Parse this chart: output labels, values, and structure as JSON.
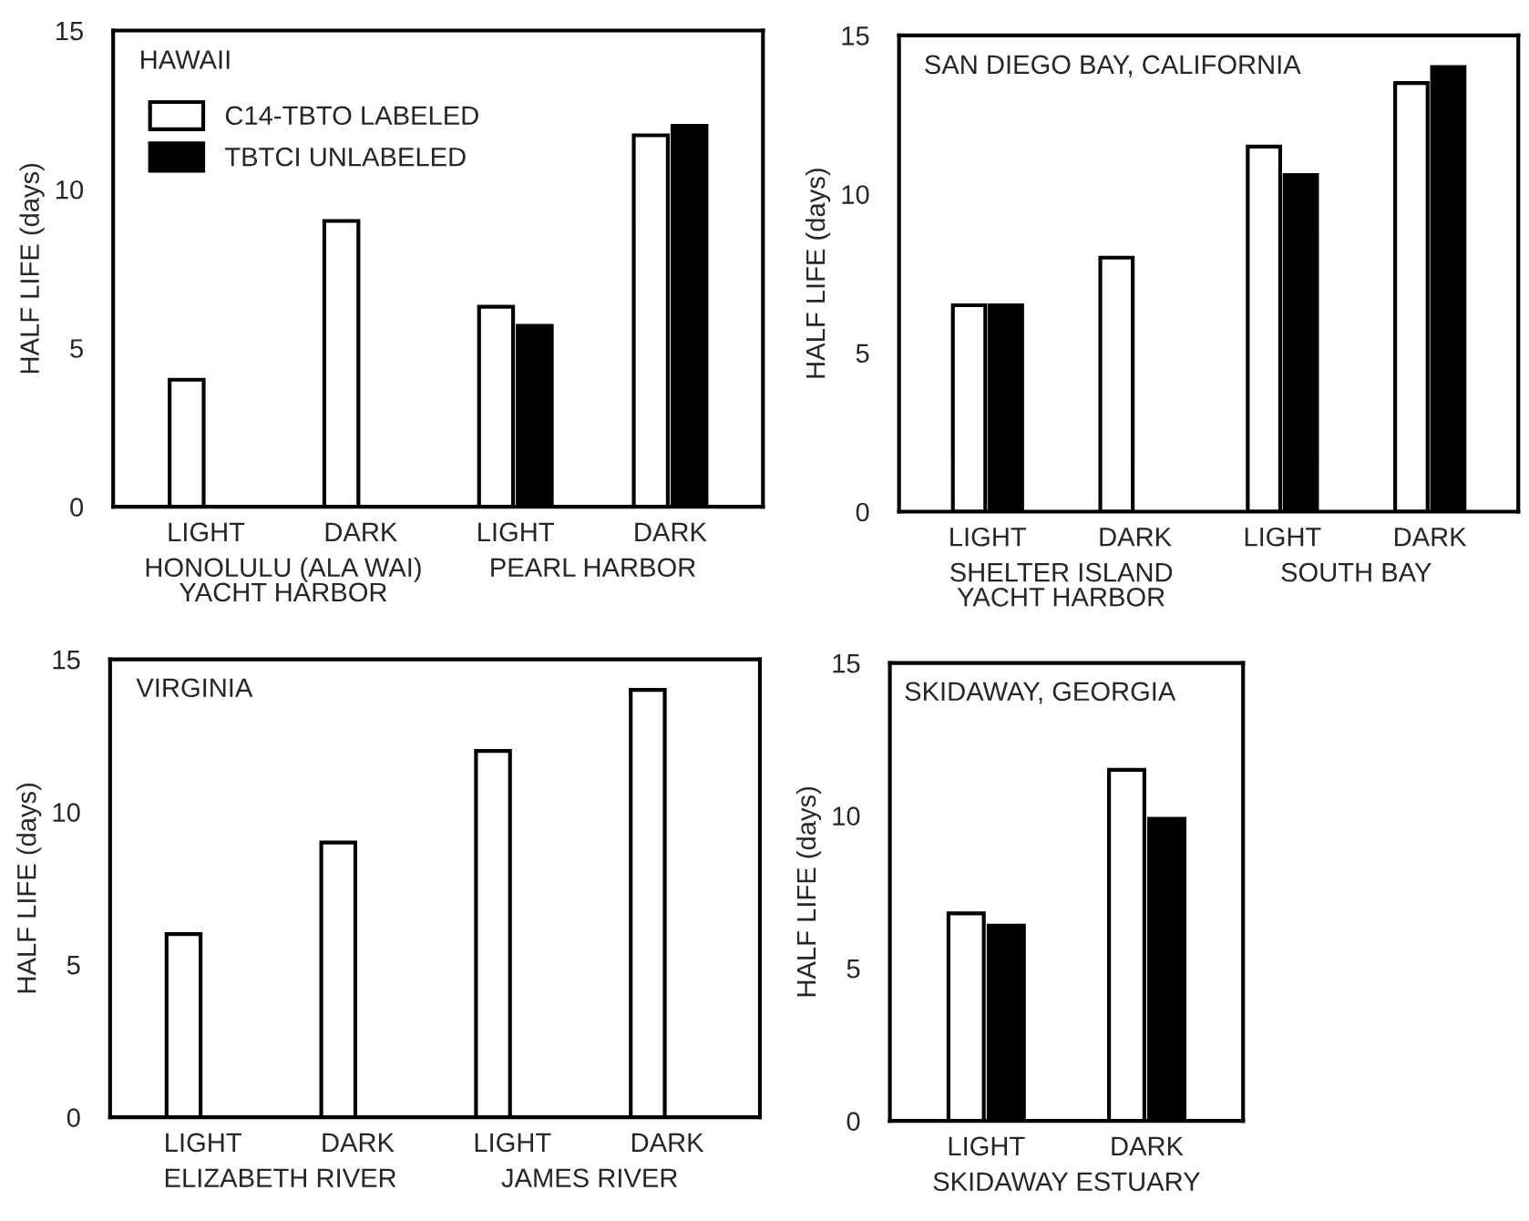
{
  "chart_data": [
    {
      "type": "bar",
      "title": "HAWAII",
      "categories": [
        "LIGHT",
        "DARK",
        "LIGHT",
        "DARK"
      ],
      "ylabel": "HALF LIFE (days)",
      "ylim": [
        0,
        15
      ],
      "yticks": [
        0,
        5,
        10,
        15
      ],
      "grid": false,
      "legend": "top left",
      "annotations": [
        "HONOLULU (ALA WAI)\nYACHT HARBOR",
        "PEARL HARBOR"
      ],
      "series": [
        {
          "name": "C14-TBTO LABELED",
          "color": "#ffffff",
          "values": [
            4,
            9,
            6.3,
            11.7
          ]
        },
        {
          "name": "TBTCI UNLABELED",
          "color": "#000000",
          "values": [
            null,
            null,
            5.7,
            12
          ]
        }
      ]
    },
    {
      "type": "bar",
      "title": "SAN DIEGO BAY, CALIFORNIA",
      "categories": [
        "LIGHT",
        "DARK",
        "LIGHT",
        "DARK"
      ],
      "ylabel": "HALF LIFE (days)",
      "ylim": [
        0,
        15
      ],
      "yticks": [
        0,
        5,
        10,
        15
      ],
      "grid": false,
      "annotations": [
        "SHELTER ISLAND\nYACHT HARBOR",
        "SOUTH BAY"
      ],
      "series": [
        {
          "color": "#ffffff",
          "values": [
            6.5,
            8,
            11.5,
            13.5
          ]
        },
        {
          "color": "#000000",
          "values": [
            6.5,
            null,
            10.6,
            14
          ]
        }
      ]
    },
    {
      "type": "bar",
      "title": "VIRGINIA",
      "categories": [
        "LIGHT",
        "DARK",
        "LIGHT",
        "DARK"
      ],
      "ylabel": "HALF LIFE (days)",
      "ylim": [
        0,
        15
      ],
      "yticks": [
        0,
        5,
        10,
        15
      ],
      "grid": false,
      "annotations": [
        "ELIZABETH RIVER",
        "JAMES RIVER"
      ],
      "series": [
        {
          "color": "#ffffff",
          "values": [
            6,
            9,
            12,
            14
          ]
        }
      ]
    },
    {
      "type": "bar",
      "title": "SKIDAWAY, GEORGIA",
      "categories": [
        "LIGHT",
        "DARK"
      ],
      "ylabel": "HALF LIFE (days)",
      "ylim": [
        0,
        15
      ],
      "yticks": [
        0,
        5,
        10,
        15
      ],
      "grid": false,
      "annotations": [
        "SKIDAWAY ESTUARY"
      ],
      "series": [
        {
          "color": "#ffffff",
          "values": [
            6.8,
            11.5
          ]
        },
        {
          "color": "#000000",
          "values": [
            6.4,
            9.9
          ]
        }
      ]
    }
  ]
}
